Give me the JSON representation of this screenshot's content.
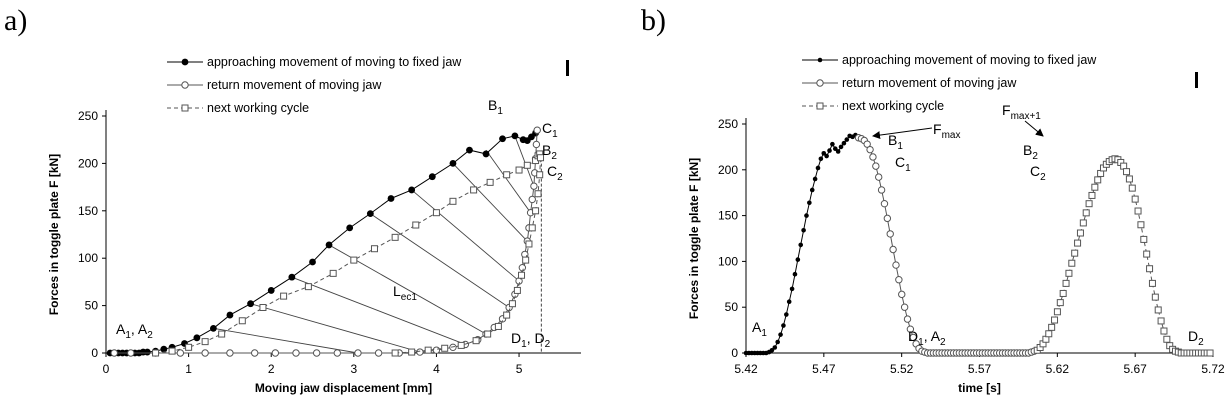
{
  "figure": {
    "label_a": "a)",
    "label_b": "b)"
  },
  "chart_data": [
    {
      "type": "line",
      "panel": "a)",
      "xlabel": "Moving jaw displacement [mm]",
      "ylabel": "Forces in toggle plate F [kN]",
      "xlim": [
        0,
        5.75
      ],
      "ylim": [
        0,
        250
      ],
      "xticks": [
        0,
        1,
        2,
        3,
        4,
        5
      ],
      "yticks": [
        0,
        50,
        100,
        150,
        200,
        250
      ],
      "grid": false,
      "legend_position": "top",
      "legend": [
        "approaching movement of moving to fixed jaw",
        "return movement of moving jaw",
        "next working cycle"
      ],
      "series": [
        {
          "name": "approaching movement of moving to fixed jaw",
          "marker": "filled-circle",
          "color": "#000000",
          "x": [
            0.05,
            0.1,
            0.15,
            0.2,
            0.25,
            0.3,
            0.35,
            0.4,
            0.45,
            0.5,
            0.6,
            0.7,
            0.8,
            0.95,
            1.1,
            1.3,
            1.5,
            1.75,
            2.0,
            2.25,
            2.5,
            2.7,
            2.95,
            3.2,
            3.45,
            3.7,
            3.95,
            4.2,
            4.4,
            4.6,
            4.8,
            4.95,
            5.05,
            5.1,
            5.15,
            5.2,
            5.22
          ],
          "y": [
            0,
            0,
            0,
            0,
            0,
            0,
            0,
            0,
            1,
            1,
            2,
            4,
            6,
            10,
            16,
            26,
            40,
            52,
            66,
            80,
            96,
            114,
            132,
            147,
            163,
            172,
            186,
            200,
            214,
            210,
            226,
            229,
            225,
            224,
            228,
            232,
            235
          ]
        },
        {
          "name": "return movement of moving jaw",
          "marker": "open-circle",
          "color": "#555555",
          "x": [
            5.22,
            5.21,
            5.2,
            5.19,
            5.18,
            5.16,
            5.14,
            5.12,
            5.1,
            5.07,
            5.04,
            5.0,
            4.95,
            4.88,
            4.8,
            4.7,
            4.6,
            4.5,
            4.35,
            4.2,
            4.0,
            3.8,
            3.55,
            3.3,
            3.05,
            2.8,
            2.55,
            2.3,
            2.05,
            1.8,
            1.5,
            1.2,
            0.9,
            0.6,
            0.3,
            0.1
          ],
          "y": [
            235,
            220,
            205,
            190,
            176,
            162,
            148,
            132,
            118,
            104,
            90,
            76,
            62,
            48,
            36,
            27,
            20,
            14,
            9,
            6,
            3,
            1,
            0,
            0,
            0,
            0,
            0,
            0,
            0,
            0,
            0,
            0,
            0,
            0,
            0,
            0
          ]
        },
        {
          "name": "next working cycle",
          "marker": "open-square",
          "color": "#555555",
          "dash": "4,3",
          "x": [
            0.6,
            0.8,
            1.0,
            1.2,
            1.4,
            1.65,
            1.9,
            2.15,
            2.45,
            2.75,
            3.0,
            3.25,
            3.5,
            3.75,
            4.0,
            4.2,
            4.45,
            4.65,
            4.85,
            5.0,
            5.1,
            5.2,
            5.23,
            5.25,
            5.26,
            5.25,
            5.23,
            5.2,
            5.16,
            5.12,
            5.08,
            5.03,
            4.98,
            4.92,
            4.85,
            4.75,
            4.62,
            4.48,
            4.3,
            4.1,
            3.9,
            3.7,
            3.5
          ],
          "y": [
            0,
            2,
            6,
            12,
            20,
            34,
            48,
            60,
            70,
            84,
            98,
            110,
            122,
            135,
            148,
            160,
            172,
            180,
            188,
            193,
            198,
            203,
            208,
            210,
            206,
            188,
            168,
            150,
            132,
            115,
            98,
            82,
            66,
            52,
            40,
            28,
            20,
            13,
            8,
            5,
            3,
            1,
            0
          ]
        }
      ],
      "annotations": [
        {
          "text": "A",
          "sub": "1",
          "after": ", ",
          "text2": "A",
          "sub2": "2"
        },
        {
          "text": "B",
          "sub": "1"
        },
        {
          "text": "C",
          "sub": "1"
        },
        {
          "text": "B",
          "sub": "2"
        },
        {
          "text": "C",
          "sub": "2"
        },
        {
          "text": "L",
          "sub": "ec1"
        },
        {
          "text": "D",
          "sub": "1",
          "after": ", ",
          "text2": "D",
          "sub2": "2"
        }
      ]
    },
    {
      "type": "line",
      "panel": "b)",
      "xlabel": "time [s]",
      "ylabel": "Forces in toggle plate F [kN]",
      "xlim": [
        5.42,
        5.72
      ],
      "ylim": [
        0,
        250
      ],
      "xticks": [
        "5.42",
        "5.47",
        "5.52",
        "5.57",
        "5.62",
        "5.67",
        "5.72"
      ],
      "yticks": [
        0,
        50,
        100,
        150,
        200,
        250
      ],
      "grid": false,
      "legend_position": "top",
      "legend": [
        "approaching movement of moving to fixed jaw",
        "return movement of moving jaw",
        "next working cycle"
      ],
      "series": [
        {
          "name": "approaching movement of moving to fixed jaw",
          "marker": "filled-dot",
          "color": "#000000",
          "t_start": 5.42,
          "t_step": 0.00185,
          "values": [
            0,
            0,
            0,
            0,
            0,
            0,
            0,
            0,
            1,
            3,
            6,
            12,
            20,
            30,
            42,
            56,
            70,
            86,
            102,
            118,
            134,
            150,
            164,
            178,
            190,
            202,
            212,
            218,
            215,
            221,
            228,
            223,
            220,
            225,
            229,
            233,
            237,
            236,
            238,
            235
          ]
        },
        {
          "name": "return movement of moving jaw",
          "marker": "open-circle",
          "color": "#555555",
          "t_start": 5.4923,
          "t_step": 0.00185,
          "values": [
            235,
            234,
            232,
            228,
            222,
            214,
            204,
            192,
            178,
            163,
            147,
            130,
            113,
            96,
            80,
            64,
            50,
            37,
            26,
            17,
            10,
            5,
            2,
            1,
            0,
            0,
            0,
            0,
            0,
            0,
            0,
            0,
            0,
            0,
            0,
            0,
            0,
            0,
            0,
            0,
            0,
            0,
            0,
            0,
            0,
            0,
            0,
            0,
            0,
            0,
            0,
            0,
            0,
            0,
            0,
            0,
            0,
            0,
            0,
            0,
            1,
            2
          ]
        },
        {
          "name": "next working cycle",
          "marker": "open-square",
          "color": "#555555",
          "dash": "4,3",
          "t_start": 5.6071,
          "t_step": 0.00185,
          "values": [
            3,
            6,
            10,
            15,
            21,
            28,
            36,
            45,
            55,
            65,
            76,
            87,
            98,
            109,
            120,
            131,
            142,
            153,
            163,
            172,
            181,
            189,
            196,
            202,
            206,
            209,
            211,
            212,
            211,
            208,
            204,
            198,
            190,
            180,
            168,
            155,
            140,
            124,
            108,
            92,
            76,
            61,
            47,
            35,
            24,
            15,
            8,
            4,
            2,
            1,
            0,
            0,
            0,
            0,
            0,
            0,
            0,
            0,
            0,
            0,
            0
          ]
        }
      ],
      "annotations": [
        {
          "text": "A",
          "sub": "1"
        },
        {
          "text": "F",
          "sub": "max"
        },
        {
          "text": "B",
          "sub": "1"
        },
        {
          "text": "C",
          "sub": "1"
        },
        {
          "text": "F",
          "sub": "max+1"
        },
        {
          "text": "B",
          "sub": "2"
        },
        {
          "text": "C",
          "sub": "2"
        },
        {
          "text": "D",
          "sub": "1",
          "after": ", ",
          "text2": "A",
          "sub2": "2"
        },
        {
          "text": "D",
          "sub": "2"
        }
      ]
    }
  ]
}
